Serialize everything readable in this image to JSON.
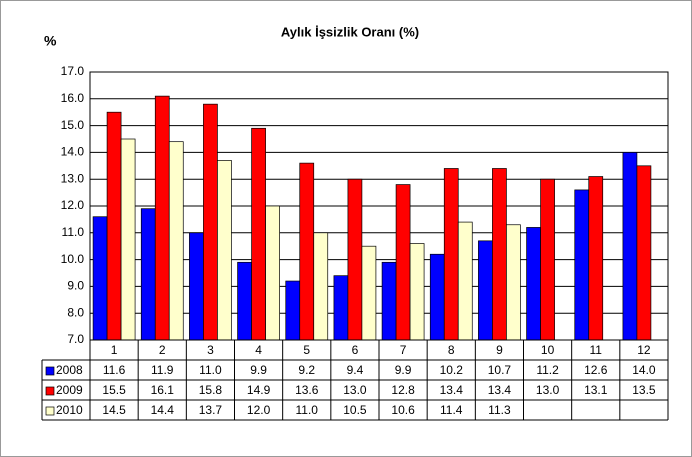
{
  "chart_data": {
    "type": "bar",
    "title": "Aylık İşsizlik Oranı (%)",
    "y_label": "%",
    "categories": [
      "1",
      "2",
      "3",
      "4",
      "5",
      "6",
      "7",
      "8",
      "9",
      "10",
      "11",
      "12"
    ],
    "series": [
      {
        "name": "2008",
        "color": "#0000ff",
        "values": [
          11.6,
          11.9,
          11.0,
          9.9,
          9.2,
          9.4,
          9.9,
          10.2,
          10.7,
          11.2,
          12.6,
          14.0
        ],
        "value_labels": [
          "11.6",
          "11.9",
          "11.0",
          "9.9",
          "9.2",
          "9.4",
          "9.9",
          "10.2",
          "10.7",
          "11.2",
          "12.6",
          "14.0"
        ]
      },
      {
        "name": "2009",
        "color": "#ff0000",
        "values": [
          15.5,
          16.1,
          15.8,
          14.9,
          13.6,
          13.0,
          12.8,
          13.4,
          13.4,
          13.0,
          13.1,
          13.5
        ],
        "value_labels": [
          "15.5",
          "16.1",
          "15.8",
          "14.9",
          "13.6",
          "13.0",
          "12.8",
          "13.4",
          "13.4",
          "13.0",
          "13.1",
          "13.5"
        ]
      },
      {
        "name": "2010",
        "color": "#ffffcc",
        "values": [
          14.5,
          14.4,
          13.7,
          12.0,
          11.0,
          10.5,
          10.6,
          11.4,
          11.3,
          null,
          null,
          null
        ],
        "value_labels": [
          "14.5",
          "14.4",
          "13.7",
          "12.0",
          "11.0",
          "10.5",
          "10.6",
          "11.4",
          "11.3",
          null,
          null,
          null
        ]
      }
    ],
    "ylim": [
      7,
      17
    ],
    "yticks": [
      {
        "value": 7,
        "label": "7.0"
      },
      {
        "value": 8,
        "label": "8.0"
      },
      {
        "value": 9,
        "label": "9.0"
      },
      {
        "value": 10,
        "label": "10.0"
      },
      {
        "value": 11,
        "label": "11.0"
      },
      {
        "value": 12,
        "label": "12.0"
      },
      {
        "value": 13,
        "label": "13.0"
      },
      {
        "value": 14,
        "label": "14.0"
      },
      {
        "value": 15,
        "label": "15.0"
      },
      {
        "value": 16,
        "label": "16.0"
      },
      {
        "value": 17,
        "label": "17.0"
      }
    ],
    "grid": true
  }
}
